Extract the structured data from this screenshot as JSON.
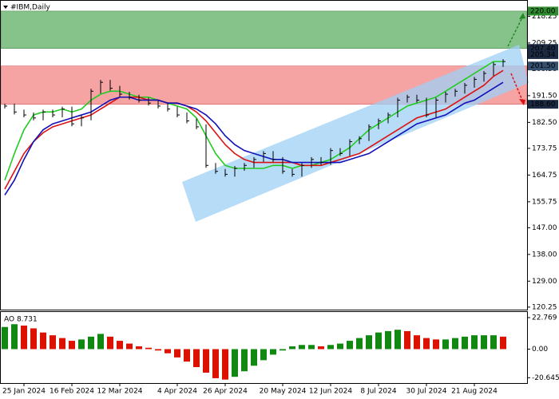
{
  "chart_data": {
    "type": "ohlc",
    "title": "#IBM,Daily",
    "categories": [
      null,
      null,
      "25 Jan 2024",
      null,
      null,
      null,
      null,
      "16 Feb 2024",
      null,
      null,
      null,
      null,
      "12 Mar 2024",
      null,
      null,
      null,
      null,
      null,
      "4 Apr 2024",
      null,
      null,
      null,
      null,
      "26 Apr 2024",
      null,
      null,
      null,
      null,
      null,
      "20 May 2024",
      null,
      null,
      null,
      null,
      "12 Jun 2024",
      null,
      null,
      null,
      null,
      "8 Jul 2024",
      null,
      null,
      null,
      null,
      "30 Jul 2024",
      null,
      null,
      null,
      null,
      "21 Aug 2024",
      null,
      null,
      null
    ],
    "values": [
      188,
      186,
      185,
      184,
      186,
      185,
      187,
      182,
      184,
      193,
      196,
      194,
      192,
      191,
      190,
      189,
      188,
      187,
      185,
      183,
      181,
      168,
      166,
      165,
      167,
      168,
      170,
      172,
      170,
      166,
      165,
      168,
      170,
      169,
      173,
      172,
      176,
      177,
      181,
      183,
      185,
      190,
      191,
      190,
      185,
      190,
      192,
      193,
      195,
      197,
      199,
      202,
      203
    ],
    "color": "#000000",
    "series": [
      {
        "color": "#22cc22",
        "values": [
          163,
          172,
          180,
          185,
          186,
          186,
          187,
          186,
          187,
          190,
          192,
          193,
          193,
          192,
          191,
          191,
          190,
          189,
          188,
          187,
          184,
          178,
          172,
          168,
          167,
          167,
          167,
          167,
          168,
          168,
          167,
          168,
          168,
          169,
          170,
          172,
          174,
          177,
          180,
          182,
          184,
          186,
          188,
          189,
          190,
          191,
          193,
          195,
          197,
          199,
          201,
          203,
          203
        ]
      },
      {
        "color": "#dd1111",
        "values": [
          160,
          166,
          172,
          176,
          179,
          181,
          182,
          183,
          184,
          185,
          187,
          189,
          191,
          191,
          191,
          190,
          190,
          189,
          189,
          188,
          186,
          183,
          179,
          175,
          172,
          170,
          169,
          169,
          169,
          169,
          169,
          168,
          168,
          168,
          169,
          170,
          171,
          172,
          174,
          176,
          178,
          180,
          182,
          184,
          185,
          186,
          187,
          189,
          191,
          193,
          195,
          198,
          200
        ]
      },
      {
        "color": "#1111bb",
        "values": [
          158,
          163,
          170,
          176,
          180,
          182,
          183,
          184,
          185,
          186,
          188,
          190,
          191,
          191,
          190,
          190,
          190,
          189,
          189,
          188,
          187,
          185,
          182,
          178,
          175,
          173,
          172,
          171,
          170,
          170,
          169,
          169,
          169,
          169,
          169,
          169,
          170,
          171,
          172,
          174,
          176,
          178,
          180,
          182,
          183,
          184,
          185,
          187,
          189,
          190,
          192,
          194,
          196
        ]
      }
    ],
    "ylim": [
      119.4,
      223.2
    ],
    "yticks": [
      218.25,
      209.25,
      {
        "value": 200.5,
        "label": "200.50"
      },
      {
        "value": 191.5,
        "label": "191.50"
      },
      {
        "value": 182.5,
        "label": "182.50"
      },
      173.75,
      164.75,
      155.75,
      {
        "value": 147,
        "label": "147.00"
      },
      {
        "value": 138,
        "label": "138.00"
      },
      {
        "value": 129,
        "label": "129.00"
      },
      120.25
    ],
    "levels": [
      {
        "value": 220,
        "label": "220.00",
        "color": "#2e8b2e"
      },
      {
        "value": 207.4,
        "label": "207.40",
        "color": "#1c2a44"
      },
      {
        "value": 205.34,
        "label": "205.34",
        "color": "#1c2a44"
      },
      {
        "value": 201.5,
        "label": "201.50",
        "color": "#34506e"
      },
      {
        "value": 188.6,
        "label": "188.60",
        "color": "#1c2a44"
      }
    ],
    "zone_colors": [
      "#86c38a",
      "#f5a3a3"
    ],
    "indicator": {
      "label": "AO 8.731",
      "values": [
        16,
        18,
        17,
        15,
        12,
        10,
        8,
        6,
        7,
        9,
        11,
        9,
        6,
        4,
        2,
        1,
        -1,
        -3,
        -6,
        -9,
        -13,
        -17,
        -21,
        -22,
        -20,
        -16,
        -12,
        -8,
        -4,
        -1,
        2,
        3,
        3,
        2,
        3,
        4,
        6,
        8,
        10,
        12,
        13,
        14,
        13,
        10,
        8,
        7,
        7,
        8,
        9,
        10,
        10,
        10,
        9
      ],
      "ylim": [
        -24.5,
        26.8
      ],
      "yticks": [
        22.769,
        {
          "value": 0,
          "label": "0.00"
        },
        -20.645
      ],
      "colors": [
        "#118811",
        "#dd1100"
      ]
    }
  }
}
